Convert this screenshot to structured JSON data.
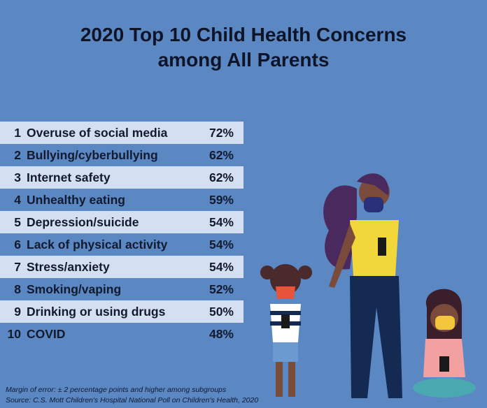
{
  "title_line1": "2020 Top 10 Child Health Concerns",
  "title_line2": "among All Parents",
  "colors": {
    "background": "#5b87c3",
    "row_light": "#d4e0f1",
    "text": "#111a2e"
  },
  "chart_data": {
    "type": "table",
    "title": "2020 Top 10 Child Health Concerns among All Parents",
    "rows": [
      {
        "rank": "1",
        "concern": "Overuse of social media",
        "percent": "72%"
      },
      {
        "rank": "2",
        "concern": "Bullying/cyberbullying",
        "percent": "62%"
      },
      {
        "rank": "3",
        "concern": "Internet safety",
        "percent": "62%"
      },
      {
        "rank": "4",
        "concern": "Unhealthy eating",
        "percent": "59%"
      },
      {
        "rank": "5",
        "concern": "Depression/suicide",
        "percent": "54%"
      },
      {
        "rank": "6",
        "concern": "Lack of physical activity",
        "percent": "54%"
      },
      {
        "rank": "7",
        "concern": "Stress/anxiety",
        "percent": "54%"
      },
      {
        "rank": "8",
        "concern": "Smoking/vaping",
        "percent": "52%"
      },
      {
        "rank": "9",
        "concern": "Drinking or using drugs",
        "percent": "50%"
      },
      {
        "rank": "10",
        "concern": "COVID",
        "percent": "48%"
      }
    ]
  },
  "notes": {
    "margin": "Margin of error: ± 2 percentage points and higher among subgroups",
    "source": "Source: C.S. Mott Children's Hospital National Poll on Children's Health, 2020"
  },
  "illustration": "masked-parent-and-children-with-phones"
}
